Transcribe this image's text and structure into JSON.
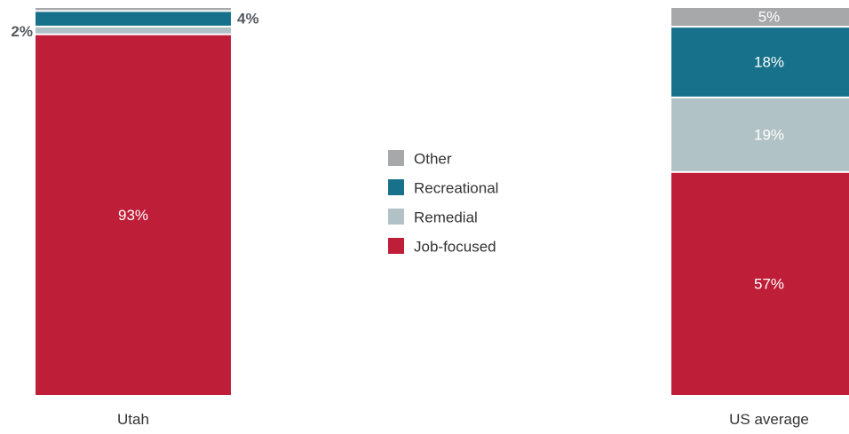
{
  "chart_data": {
    "type": "bar",
    "stacked": true,
    "orientation": "vertical",
    "normalized_to_percent": true,
    "categories": [
      "Utah",
      "US average"
    ],
    "series": [
      {
        "name": "Job-focused",
        "color": "#bf1e38",
        "values": [
          93,
          57
        ]
      },
      {
        "name": "Remedial",
        "color": "#b1c2c6",
        "values": [
          2,
          19
        ]
      },
      {
        "name": "Recreational",
        "color": "#17718b",
        "values": [
          4,
          18
        ]
      },
      {
        "name": "Other",
        "color": "#a7a8aa",
        "values": [
          1,
          5
        ]
      }
    ],
    "data_labels": [
      {
        "category": "Utah",
        "series": "Job-focused",
        "text": "93%",
        "position": "inside"
      },
      {
        "category": "Utah",
        "series": "Remedial",
        "text": "2%",
        "position": "outside-left"
      },
      {
        "category": "Utah",
        "series": "Recreational",
        "text": "4%",
        "position": "outside-right"
      },
      {
        "category": "US average",
        "series": "Job-focused",
        "text": "57%",
        "position": "inside"
      },
      {
        "category": "US average",
        "series": "Remedial",
        "text": "19%",
        "position": "inside"
      },
      {
        "category": "US average",
        "series": "Recreational",
        "text": "18%",
        "position": "inside"
      },
      {
        "category": "US average",
        "series": "Other",
        "text": "5%",
        "position": "inside"
      }
    ],
    "legend": {
      "placement": "center",
      "entries": [
        "Other",
        "Recreational",
        "Remedial",
        "Job-focused"
      ]
    },
    "ylim": [
      0,
      100
    ],
    "grid": false,
    "title": "",
    "xlabel": "",
    "ylabel": ""
  }
}
